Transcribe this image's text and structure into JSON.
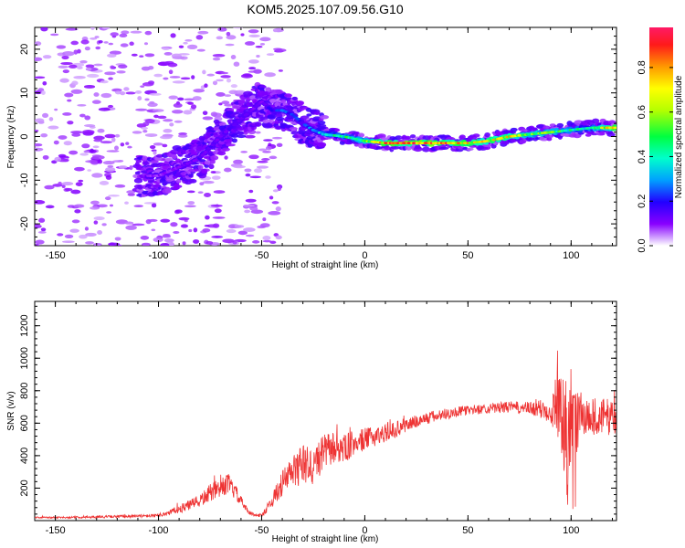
{
  "title": "KOM5.2025.107.09.56.G10",
  "chart_data": [
    {
      "type": "heatmap",
      "xlabel": "Height of straight line (km)",
      "ylabel": "Frequency (Hz)",
      "xlim": [
        -160,
        122
      ],
      "ylim": [
        -25,
        25
      ],
      "xticks": [
        -150,
        -100,
        -50,
        0,
        50,
        100
      ],
      "yticks": [
        -20,
        -10,
        0,
        10,
        20
      ],
      "colorbar": {
        "label": "Normalized spectral amplitude",
        "range": [
          0.0,
          0.98
        ],
        "ticks": [
          0.0,
          0.2,
          0.4,
          0.6,
          0.8
        ],
        "tick_labels": [
          "0.0",
          "0.2",
          "0.4",
          "0.6",
          "0.8"
        ],
        "colormap": "rainbow (purple-blue-cyan-green-yellow-red-magenta)"
      },
      "ridge": {
        "x": [
          -100,
          -90,
          -80,
          -70,
          -60,
          -50,
          -45,
          -40,
          -35,
          -30,
          -25,
          -20,
          -10,
          0,
          10,
          20,
          30,
          40,
          50,
          60,
          70,
          80,
          90,
          100,
          110,
          120
        ],
        "y": [
          -9,
          -7,
          -5,
          0,
          4,
          8,
          6,
          6,
          5,
          3,
          1.5,
          0.5,
          0,
          -1,
          -1.5,
          -1.5,
          -1.5,
          -1.5,
          -1.5,
          -1,
          0,
          0.5,
          1,
          1.5,
          2,
          2
        ],
        "amplitude": [
          0.1,
          0.12,
          0.15,
          0.15,
          0.15,
          0.12,
          0.2,
          0.25,
          0.25,
          0.2,
          0.3,
          0.4,
          0.45,
          0.55,
          0.85,
          0.9,
          0.9,
          0.85,
          0.75,
          0.7,
          0.75,
          0.6,
          0.55,
          0.45,
          0.45,
          0.8
        ]
      }
    },
    {
      "type": "line",
      "xlabel": "Height of straight line (km)",
      "ylabel": "SNR (v/v)",
      "xlim": [
        -160,
        122
      ],
      "ylim": [
        0,
        1350
      ],
      "xticks": [
        -150,
        -100,
        -50,
        0,
        50,
        100
      ],
      "yticks": [
        200,
        400,
        600,
        800,
        1000,
        1200
      ],
      "color": "#ee3333",
      "series": [
        {
          "x": [
            -160,
            -140,
            -120,
            -100,
            -90,
            -80,
            -75,
            -70,
            -66,
            -62,
            -58,
            -55,
            -50,
            -45,
            -40,
            -35,
            -30,
            -25,
            -20,
            -15,
            -10,
            -5,
            0,
            5,
            10,
            15,
            20,
            30,
            40,
            50,
            60,
            70,
            80,
            90,
            95,
            98,
            100,
            102,
            105,
            110,
            122
          ],
          "y": [
            18,
            20,
            25,
            30,
            70,
            120,
            170,
            200,
            230,
            160,
            80,
            40,
            30,
            120,
            230,
            300,
            350,
            330,
            420,
            450,
            440,
            480,
            500,
            520,
            540,
            560,
            590,
            630,
            660,
            680,
            690,
            700,
            690,
            680,
            750,
            500,
            700,
            620,
            650,
            640,
            640
          ],
          "spread": [
            5,
            6,
            8,
            10,
            25,
            40,
            55,
            60,
            60,
            45,
            20,
            12,
            12,
            40,
            80,
            110,
            120,
            120,
            110,
            100,
            90,
            80,
            70,
            60,
            55,
            50,
            45,
            40,
            35,
            30,
            30,
            35,
            40,
            80,
            300,
            350,
            350,
            250,
            150,
            120,
            110
          ]
        }
      ]
    }
  ]
}
